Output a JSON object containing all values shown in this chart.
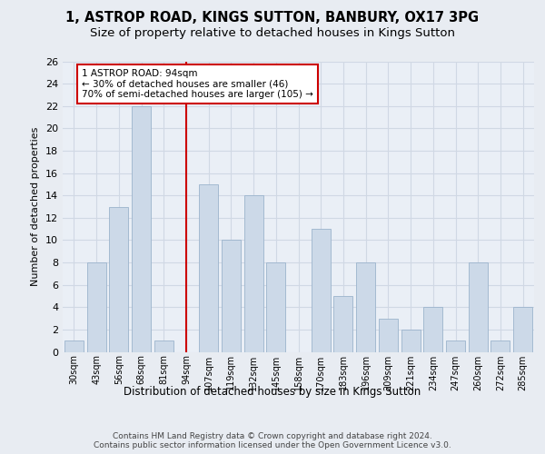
{
  "title_line1": "1, ASTROP ROAD, KINGS SUTTON, BANBURY, OX17 3PG",
  "title_line2": "Size of property relative to detached houses in Kings Sutton",
  "xlabel": "Distribution of detached houses by size in Kings Sutton",
  "ylabel": "Number of detached properties",
  "footer_line1": "Contains HM Land Registry data © Crown copyright and database right 2024.",
  "footer_line2": "Contains public sector information licensed under the Open Government Licence v3.0.",
  "categories": [
    "30sqm",
    "43sqm",
    "56sqm",
    "68sqm",
    "81sqm",
    "94sqm",
    "107sqm",
    "119sqm",
    "132sqm",
    "145sqm",
    "158sqm",
    "170sqm",
    "183sqm",
    "196sqm",
    "209sqm",
    "221sqm",
    "234sqm",
    "247sqm",
    "260sqm",
    "272sqm",
    "285sqm"
  ],
  "bar_heights": [
    1,
    8,
    13,
    22,
    1,
    0,
    15,
    10,
    14,
    8,
    0,
    11,
    5,
    8,
    3,
    2,
    4,
    1,
    8,
    1,
    4
  ],
  "bar_color": "#ccd9e8",
  "vline_color": "#cc0000",
  "vline_index": 5,
  "annotation_text_line1": "1 ASTROP ROAD: 94sqm",
  "annotation_text_line2": "← 30% of detached houses are smaller (46)",
  "annotation_text_line3": "70% of semi-detached houses are larger (105) →",
  "ylim_max": 26,
  "yticks": [
    0,
    2,
    4,
    6,
    8,
    10,
    12,
    14,
    16,
    18,
    20,
    22,
    24,
    26
  ],
  "bg_color": "#e8ecf2",
  "plot_bg_color": "#eaeff6",
  "grid_color": "#d0d8e4",
  "title_fontsize": 10.5,
  "subtitle_fontsize": 9.5,
  "footer_fontsize": 6.5
}
